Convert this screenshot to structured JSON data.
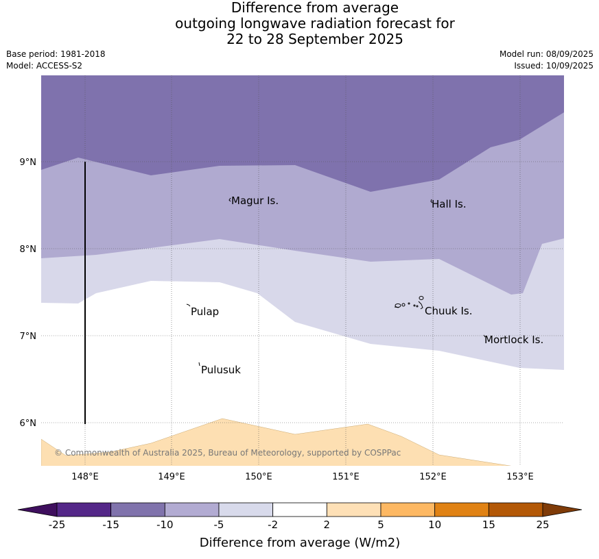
{
  "title": {
    "line1": "Difference from average",
    "line2": "outgoing longwave radiation forecast for",
    "line3": "22 to 28 September 2025"
  },
  "meta": {
    "base_period": "Base period: 1981-2018",
    "model": "Model: ACCESS-S2",
    "model_run": "Model run: 08/09/2025",
    "issued": "Issued: 10/09/2025"
  },
  "map": {
    "lon_labels": [
      "148°E",
      "149°E",
      "150°E",
      "151°E",
      "152°E",
      "153°E"
    ],
    "lat_labels": [
      "9°N",
      "8°N",
      "7°N",
      "6°N"
    ],
    "places": [
      "Magur Is.",
      "Hall Is.",
      "Pulap",
      "Chuuk Is.",
      "Mortlock Is.",
      "Pulusuk"
    ],
    "copyright": "© Commonwealth of Australia 2025, Bureau of Meteorology, supported by COSPPac",
    "fill_colors": {
      "lt_-15": "#7f72ad",
      "-15_-10": "#b0aad0",
      "-10_-5": "#b0aad0",
      "-5_-2": "#d8d8ea",
      "-2_2": "#ffffff",
      "2_5": "#fddfb2"
    }
  },
  "colorbar": {
    "ticks": [
      "-25",
      "-15",
      "-10",
      "-5",
      "-2",
      "2",
      "5",
      "10",
      "15",
      "25"
    ],
    "colors": [
      "#3f0f5e",
      "#542788",
      "#8073ac",
      "#b2abd2",
      "#d8daeb",
      "#ffffff",
      "#fee0b6",
      "#fdb863",
      "#e08214",
      "#b35806",
      "#7f3b08"
    ],
    "label": "Difference from average (W/m2)"
  }
}
